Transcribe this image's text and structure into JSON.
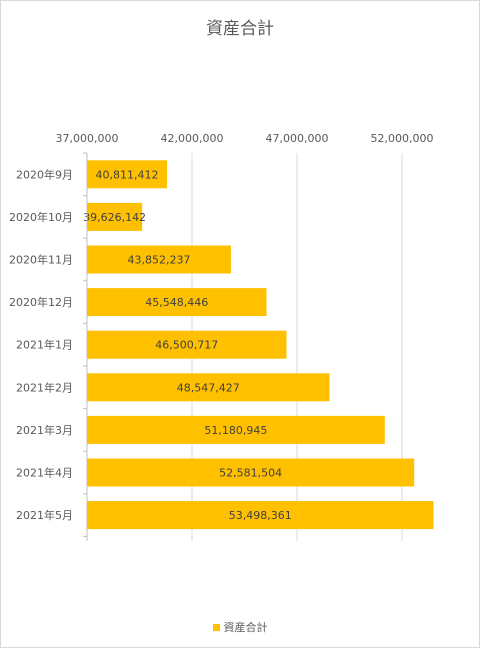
{
  "chart_data": {
    "type": "bar",
    "orientation": "horizontal",
    "title": "資産合計",
    "categories": [
      "2020年9月",
      "2020年10月",
      "2020年11月",
      "2020年12月",
      "2021年1月",
      "2021年2月",
      "2021年3月",
      "2021年4月",
      "2021年5月"
    ],
    "series": [
      {
        "name": "資産合計",
        "color": "#FFC000",
        "values": [
          40811412,
          39626142,
          43852237,
          45548446,
          46500717,
          48547427,
          51180945,
          52581504,
          53498361
        ],
        "value_labels": [
          "40,811,412",
          "39,626,142",
          "43,852,237",
          "45,548,446",
          "46,500,717",
          "48,547,427",
          "51,180,945",
          "52,581,504",
          "53,498,361"
        ]
      }
    ],
    "xlim": [
      37000000,
      54500000
    ],
    "xticks": [
      37000000,
      42000000,
      47000000,
      52000000
    ],
    "xtick_labels": [
      "37,000,000",
      "42,000,000",
      "47,000,000",
      "52,000,000"
    ],
    "axis_position": "top",
    "gridlines": true,
    "legend_position": "bottom",
    "legend": [
      "資産合計"
    ]
  }
}
